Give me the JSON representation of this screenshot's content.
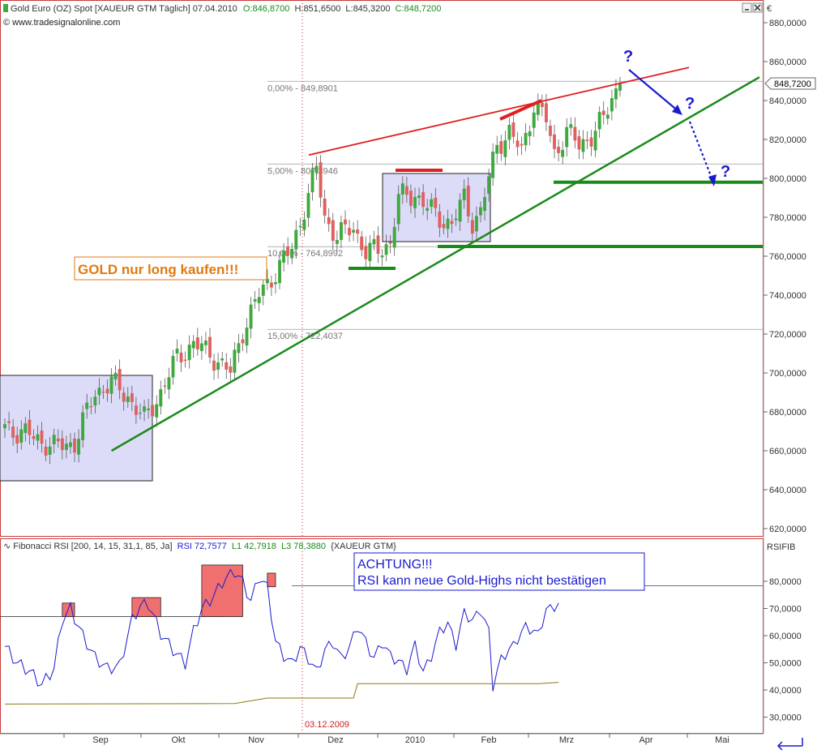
{
  "header": {
    "title": "Gold Euro (OZ) Spot [XAUEUR GTM  Täglich] 07.04.2010",
    "open_label": "O:846,8700",
    "high_label": "H:851,6500",
    "low_label": "L:845,3200",
    "close_label": "C:848,7200",
    "source": "© www.tradesignalonline.com",
    "currency_label": "€"
  },
  "rsi_header": {
    "title": "Fibonacci RSI [200, 14, 15, 31,1, 85, Ja]",
    "rsi_label": "RSI 72,7577",
    "l1_label": "L1 42,7918",
    "l3_label": "L3 78,3880",
    "symbol": "{XAUEUR GTM}",
    "axis_label": "RSIFIB"
  },
  "annotations": {
    "gold_text": "GOLD nur long kaufen!!!",
    "achtung_line1": "ACHTUNG!!!",
    "achtung_line2": "RSI kann neue Gold-Highs nicht bestätigen",
    "question": "?",
    "date_marker": "03.12.2009",
    "last_price": "848,7200"
  },
  "colors": {
    "up_candle": "#3fa83f",
    "down_candle": "#e06060",
    "trend_green": "#1a8a1a",
    "trend_red": "#e02020",
    "rsi_line": "#1a1ad0",
    "l1_line": "#8a7a10",
    "box_fill": "#dcdcf8",
    "rsi_box_fill": "#f07070",
    "annotation_orange": "#e07a10",
    "annotation_blue": "#1a1ad0"
  },
  "chart_data": [
    {
      "type": "candlestick",
      "title": "Gold Euro (OZ) Spot",
      "x_tick_labels": [
        "Sep",
        "Okt",
        "Nov",
        "Dez",
        "2010",
        "Feb",
        "Mrz",
        "Apr",
        "Mai"
      ],
      "y_tick_labels": [
        "620,0000",
        "640,0000",
        "660,0000",
        "680,0000",
        "700,0000",
        "720,0000",
        "740,0000",
        "760,0000",
        "780,0000",
        "800,0000",
        "820,0000",
        "840,0000",
        "860,0000",
        "880,0000"
      ],
      "ylim": [
        612,
        890
      ],
      "last_value": 848.72,
      "fibonacci_levels": [
        {
          "label": "0,00% - 849,8901",
          "value": 849.89
        },
        {
          "label": "5,00% - 807,3946",
          "value": 807.39
        },
        {
          "label": "10,00% - 764,8992",
          "value": 764.9
        },
        {
          "label": "15,00% - 722,4037",
          "value": 722.4
        }
      ],
      "close_waypoints": [
        [
          0,
          672
        ],
        [
          6,
          668
        ],
        [
          12,
          662
        ],
        [
          17,
          664
        ],
        [
          22,
          690
        ],
        [
          26,
          695
        ],
        [
          30,
          688
        ],
        [
          34,
          676
        ],
        [
          38,
          690
        ],
        [
          42,
          708
        ],
        [
          46,
          715
        ],
        [
          50,
          710
        ],
        [
          55,
          700
        ],
        [
          58,
          722
        ],
        [
          62,
          740
        ],
        [
          66,
          752
        ],
        [
          70,
          764
        ],
        [
          73,
          785
        ],
        [
          76,
          805
        ],
        [
          78,
          780
        ],
        [
          81,
          770
        ],
        [
          85,
          775
        ],
        [
          88,
          762
        ],
        [
          91,
          763
        ],
        [
          94,
          767
        ],
        [
          96,
          790
        ],
        [
          100,
          792
        ],
        [
          103,
          785
        ],
        [
          106,
          780
        ],
        [
          109,
          776
        ],
        [
          112,
          790
        ],
        [
          114,
          778
        ],
        [
          116,
          782
        ],
        [
          118,
          800
        ],
        [
          120,
          818
        ],
        [
          123,
          823
        ],
        [
          126,
          814
        ],
        [
          129,
          838
        ],
        [
          132,
          830
        ],
        [
          134,
          813
        ],
        [
          137,
          824
        ],
        [
          140,
          817
        ],
        [
          143,
          822
        ],
        [
          146,
          830
        ],
        [
          148,
          842
        ],
        [
          150,
          849
        ]
      ],
      "horizontal_support": [
        798,
        765
      ],
      "trend_lines": [
        {
          "color": "green",
          "from": [
            26,
            660
          ],
          "to": [
            164,
            852
          ]
        },
        {
          "color": "red",
          "from": [
            65,
            812
          ],
          "to": [
            152,
            857
          ]
        }
      ]
    },
    {
      "type": "line",
      "title": "Fibonacci RSI",
      "y_tick_labels": [
        "30,0000",
        "40,0000",
        "50,0000",
        "60,0000",
        "70,0000",
        "80,0000"
      ],
      "ylim": [
        25,
        88
      ],
      "levels": [
        {
          "name": "L3",
          "value": 78.39
        },
        {
          "name": "upper",
          "value": 67
        }
      ],
      "series": [
        {
          "values": [
            [
              0,
              56
            ],
            [
              3,
              50
            ],
            [
              6,
              47
            ],
            [
              9,
              42
            ],
            [
              12,
              48
            ],
            [
              14,
              66
            ],
            [
              16,
              70
            ],
            [
              19,
              60
            ],
            [
              22,
              52
            ],
            [
              25,
              48
            ],
            [
              28,
              49
            ],
            [
              31,
              66
            ],
            [
              33,
              71
            ],
            [
              35,
              72
            ],
            [
              38,
              61
            ],
            [
              41,
              55
            ],
            [
              44,
              50
            ],
            [
              46,
              62
            ],
            [
              48,
              70
            ],
            [
              51,
              75
            ],
            [
              53,
              80
            ],
            [
              56,
              84
            ],
            [
              58,
              80
            ],
            [
              60,
              73
            ],
            [
              62,
              82
            ],
            [
              64,
              78
            ],
            [
              66,
              58
            ],
            [
              68,
              53
            ],
            [
              70,
              50
            ],
            [
              72,
              56
            ],
            [
              74,
              52
            ],
            [
              76,
              47
            ],
            [
              78,
              55
            ],
            [
              80,
              58
            ],
            [
              82,
              52
            ],
            [
              84,
              56
            ],
            [
              86,
              64
            ],
            [
              88,
              58
            ],
            [
              90,
              52
            ],
            [
              92,
              58
            ],
            [
              94,
              53
            ],
            [
              96,
              51
            ],
            [
              98,
              48
            ],
            [
              100,
              57
            ],
            [
              102,
              47
            ],
            [
              104,
              53
            ],
            [
              106,
              62
            ],
            [
              108,
              65
            ],
            [
              110,
              57
            ],
            [
              112,
              69
            ],
            [
              114,
              66
            ],
            [
              116,
              70
            ],
            [
              118,
              62
            ],
            [
              119,
              42
            ],
            [
              121,
              52
            ],
            [
              124,
              57
            ],
            [
              127,
              64
            ],
            [
              130,
              61
            ],
            [
              132,
              70
            ],
            [
              135,
              72
            ]
          ]
        },
        {
          "values": [
            [
              0,
              34.8
            ],
            [
              56,
              35
            ],
            [
              64,
              37
            ],
            [
              85,
              37
            ],
            [
              86,
              42.3
            ],
            [
              130,
              42.3
            ],
            [
              135,
              42.8
            ]
          ]
        }
      ],
      "highlight_ranges": [
        [
          14,
          17
        ],
        [
          31,
          38
        ],
        [
          48,
          58
        ],
        [
          64,
          66
        ]
      ]
    }
  ]
}
